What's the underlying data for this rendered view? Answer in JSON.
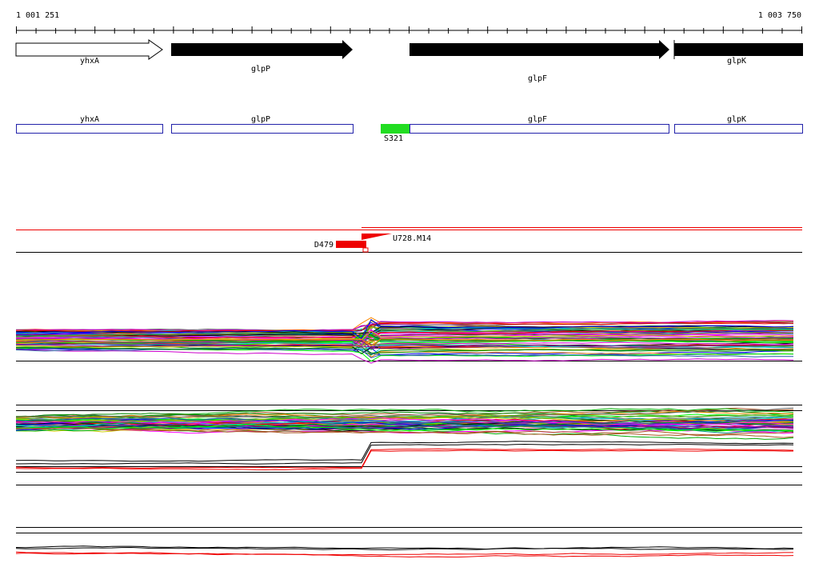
{
  "ruler": {
    "start": "1 001 251",
    "end": "1 003 750"
  },
  "genes": [
    {
      "label": "yhxA"
    },
    {
      "label": "glpP"
    },
    {
      "label": "glpF"
    },
    {
      "label": "glpK"
    }
  ],
  "transcripts": [
    {
      "label": "yhxA"
    },
    {
      "label": "glpP"
    },
    {
      "label": "glpF"
    },
    {
      "label": "glpK"
    }
  ],
  "features": {
    "promoter": "S321",
    "downshift": "D479",
    "upshift": "U728.M14"
  }
}
